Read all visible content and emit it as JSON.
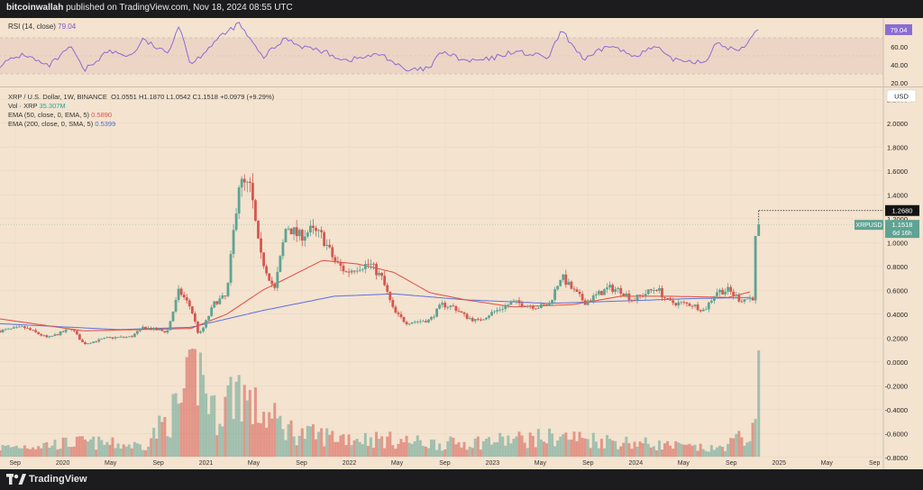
{
  "header": {
    "author": "bitcoinwallah",
    "published_text": "published on TradingView.com, Nov 18, 2024 08:55 UTC"
  },
  "footer": {
    "brand": "TradingView"
  },
  "rsi": {
    "label": "RSI (14, close)",
    "value": "79.04",
    "ticks": [
      "80.00",
      "60.00",
      "40.00",
      "20.00"
    ],
    "levels": [
      30,
      70
    ]
  },
  "legend": {
    "symbol": "XRP / U.S. Dollar, 1W, BINANCE",
    "open": "O1.0551",
    "high": "H1.1870",
    "low": "L1.0542",
    "close": "C1.1518",
    "change": "+0.0979 (+9.29%)",
    "vol_label": "Vol · XRP",
    "vol_value": "35.307M",
    "ema50_label": "EMA (50, close, 0, EMA, 5)",
    "ema50_value": "0.5890",
    "ema200_label": "EMA (200, close, 0, SMA, 5)",
    "ema200_value": "0.5399"
  },
  "price_axis": {
    "currency": "USD",
    "ticks": [
      "2.2000",
      "2.0000",
      "1.8000",
      "1.6000",
      "1.4000",
      "1.2000",
      "1.0000",
      "0.8000",
      "0.6000",
      "0.4000",
      "0.2000",
      "0.0000",
      "-0.2000",
      "-0.4000",
      "-0.6000",
      "-0.8000"
    ],
    "marker_value": "1.2680",
    "last_symbol": "XRPUSD",
    "last_value": "1.1518",
    "countdown": "6d 16h"
  },
  "time_axis": {
    "labels": [
      "Sep",
      "2020",
      "May",
      "Sep",
      "2021",
      "May",
      "Sep",
      "2022",
      "May",
      "Sep",
      "2023",
      "May",
      "Sep",
      "2024",
      "May",
      "Sep",
      "2025",
      "May",
      "Sep"
    ]
  },
  "colors": {
    "up": "#5ea393",
    "down": "#d5574f",
    "ema50": "#e04b42",
    "ema200": "#5b6fe0",
    "rsi": "#8c6bd4",
    "background": "#f3e3cf"
  },
  "chart_data": {
    "type": "candlestick",
    "interval": "1W",
    "x_range": [
      "2019-08",
      "2025-10"
    ],
    "ylim": [
      -0.9,
      2.3
    ],
    "anchors": [
      {
        "date": "2019-08",
        "close": 0.26
      },
      {
        "date": "2019-10",
        "close": 0.29
      },
      {
        "date": "2019-12",
        "close": 0.2
      },
      {
        "date": "2020-01",
        "close": 0.24
      },
      {
        "date": "2020-02",
        "close": 0.28
      },
      {
        "date": "2020-03",
        "close": 0.15
      },
      {
        "date": "2020-05",
        "close": 0.2
      },
      {
        "date": "2020-07",
        "close": 0.21
      },
      {
        "date": "2020-08",
        "close": 0.29
      },
      {
        "date": "2020-10",
        "close": 0.25
      },
      {
        "date": "2020-11",
        "close": 0.6
      },
      {
        "date": "2020-12",
        "close": 0.45
      },
      {
        "date": "2020-12-21",
        "close": 0.22
      },
      {
        "date": "2021-01",
        "close": 0.28
      },
      {
        "date": "2021-02",
        "close": 0.5
      },
      {
        "date": "2021-03",
        "close": 0.55
      },
      {
        "date": "2021-04",
        "close": 1.5
      },
      {
        "date": "2021-05",
        "close": 1.45
      },
      {
        "date": "2021-05-24",
        "close": 0.9
      },
      {
        "date": "2021-06",
        "close": 0.85
      },
      {
        "date": "2021-07",
        "close": 0.6
      },
      {
        "date": "2021-08",
        "close": 1.15
      },
      {
        "date": "2021-09",
        "close": 1.05
      },
      {
        "date": "2021-10",
        "close": 1.1
      },
      {
        "date": "2021-11",
        "close": 1.05
      },
      {
        "date": "2021-12",
        "close": 0.85
      },
      {
        "date": "2022-01",
        "close": 0.75
      },
      {
        "date": "2022-02",
        "close": 0.8
      },
      {
        "date": "2022-03",
        "close": 0.82
      },
      {
        "date": "2022-04",
        "close": 0.7
      },
      {
        "date": "2022-05",
        "close": 0.42
      },
      {
        "date": "2022-06",
        "close": 0.33
      },
      {
        "date": "2022-08",
        "close": 0.35
      },
      {
        "date": "2022-09",
        "close": 0.48
      },
      {
        "date": "2022-10",
        "close": 0.46
      },
      {
        "date": "2022-11",
        "close": 0.38
      },
      {
        "date": "2022-12",
        "close": 0.34
      },
      {
        "date": "2023-01",
        "close": 0.4
      },
      {
        "date": "2023-03",
        "close": 0.5
      },
      {
        "date": "2023-05",
        "close": 0.46
      },
      {
        "date": "2023-06",
        "close": 0.48
      },
      {
        "date": "2023-07",
        "close": 0.72
      },
      {
        "date": "2023-08",
        "close": 0.6
      },
      {
        "date": "2023-09",
        "close": 0.5
      },
      {
        "date": "2023-11",
        "close": 0.62
      },
      {
        "date": "2023-12",
        "close": 0.6
      },
      {
        "date": "2024-01",
        "close": 0.52
      },
      {
        "date": "2024-03",
        "close": 0.62
      },
      {
        "date": "2024-04",
        "close": 0.5
      },
      {
        "date": "2024-06",
        "close": 0.48
      },
      {
        "date": "2024-07",
        "close": 0.43
      },
      {
        "date": "2024-08",
        "close": 0.59
      },
      {
        "date": "2024-09",
        "close": 0.6
      },
      {
        "date": "2024-10",
        "close": 0.52
      },
      {
        "date": "2024-11-04",
        "close": 0.54
      },
      {
        "date": "2024-11-11",
        "close": 1.06
      },
      {
        "date": "2024-11-18",
        "close": 1.15
      }
    ],
    "last_candle": {
      "open": 1.0551,
      "high": 1.187,
      "low": 1.0542,
      "close": 1.1518
    },
    "ema50": [
      {
        "date": "2019-08",
        "value": 0.36
      },
      {
        "date": "2020-03",
        "value": 0.26
      },
      {
        "date": "2020-12",
        "value": 0.28
      },
      {
        "date": "2021-03",
        "value": 0.4
      },
      {
        "date": "2021-06",
        "value": 0.6
      },
      {
        "date": "2021-09",
        "value": 0.75
      },
      {
        "date": "2021-11",
        "value": 0.85
      },
      {
        "date": "2022-02",
        "value": 0.82
      },
      {
        "date": "2022-05",
        "value": 0.75
      },
      {
        "date": "2022-08",
        "value": 0.58
      },
      {
        "date": "2022-11",
        "value": 0.52
      },
      {
        "date": "2023-03",
        "value": 0.46
      },
      {
        "date": "2023-08",
        "value": 0.48
      },
      {
        "date": "2023-12",
        "value": 0.55
      },
      {
        "date": "2024-04",
        "value": 0.55
      },
      {
        "date": "2024-09",
        "value": 0.54
      },
      {
        "date": "2024-11",
        "value": 0.59
      }
    ],
    "ema200": [
      {
        "date": "2019-08",
        "value": 0.32
      },
      {
        "date": "2020-06",
        "value": 0.27
      },
      {
        "date": "2020-12",
        "value": 0.29
      },
      {
        "date": "2021-06",
        "value": 0.43
      },
      {
        "date": "2021-12",
        "value": 0.55
      },
      {
        "date": "2022-05",
        "value": 0.57
      },
      {
        "date": "2022-11",
        "value": 0.52
      },
      {
        "date": "2023-06",
        "value": 0.49
      },
      {
        "date": "2023-12",
        "value": 0.51
      },
      {
        "date": "2024-06",
        "value": 0.53
      },
      {
        "date": "2024-11",
        "value": 0.5399
      }
    ],
    "rsi_series": [
      {
        "date": "2019-08",
        "value": 40
      },
      {
        "date": "2019-10",
        "value": 52
      },
      {
        "date": "2019-12",
        "value": 38
      },
      {
        "date": "2020-02",
        "value": 60
      },
      {
        "date": "2020-03",
        "value": 33
      },
      {
        "date": "2020-05",
        "value": 55
      },
      {
        "date": "2020-07",
        "value": 50
      },
      {
        "date": "2020-08",
        "value": 68
      },
      {
        "date": "2020-10",
        "value": 52
      },
      {
        "date": "2020-11",
        "value": 85
      },
      {
        "date": "2020-12",
        "value": 40
      },
      {
        "date": "2021-02",
        "value": 66
      },
      {
        "date": "2021-04",
        "value": 86
      },
      {
        "date": "2021-06",
        "value": 48
      },
      {
        "date": "2021-08",
        "value": 70
      },
      {
        "date": "2021-09",
        "value": 62
      },
      {
        "date": "2021-11",
        "value": 55
      },
      {
        "date": "2022-01",
        "value": 45
      },
      {
        "date": "2022-04",
        "value": 52
      },
      {
        "date": "2022-06",
        "value": 33
      },
      {
        "date": "2022-08",
        "value": 36
      },
      {
        "date": "2022-09",
        "value": 55
      },
      {
        "date": "2022-11",
        "value": 44
      },
      {
        "date": "2023-01",
        "value": 46
      },
      {
        "date": "2023-03",
        "value": 55
      },
      {
        "date": "2023-06",
        "value": 48
      },
      {
        "date": "2023-07",
        "value": 78
      },
      {
        "date": "2023-09",
        "value": 45
      },
      {
        "date": "2023-11",
        "value": 62
      },
      {
        "date": "2024-01",
        "value": 50
      },
      {
        "date": "2024-03",
        "value": 60
      },
      {
        "date": "2024-04",
        "value": 47
      },
      {
        "date": "2024-07",
        "value": 43
      },
      {
        "date": "2024-08",
        "value": 63
      },
      {
        "date": "2024-10",
        "value": 55
      },
      {
        "date": "2024-11-11",
        "value": 78
      },
      {
        "date": "2024-11-18",
        "value": 79.04
      }
    ],
    "volume": {
      "label": "Vol · XRP",
      "last": "35.307M",
      "relative_heights": [
        {
          "date": "2019-08",
          "value": 0.1
        },
        {
          "date": "2020-03",
          "value": 0.16
        },
        {
          "date": "2020-08",
          "value": 0.12
        },
        {
          "date": "2020-11",
          "value": 0.55
        },
        {
          "date": "2020-12-21",
          "value": 1.0
        },
        {
          "date": "2021-02",
          "value": 0.45
        },
        {
          "date": "2021-04",
          "value": 0.8
        },
        {
          "date": "2021-05",
          "value": 0.55
        },
        {
          "date": "2021-09",
          "value": 0.25
        },
        {
          "date": "2022-05",
          "value": 0.18
        },
        {
          "date": "2022-09",
          "value": 0.14
        },
        {
          "date": "2023-07",
          "value": 0.22
        },
        {
          "date": "2024-08",
          "value": 0.08
        },
        {
          "date": "2024-11-11",
          "value": 0.28
        }
      ]
    }
  }
}
